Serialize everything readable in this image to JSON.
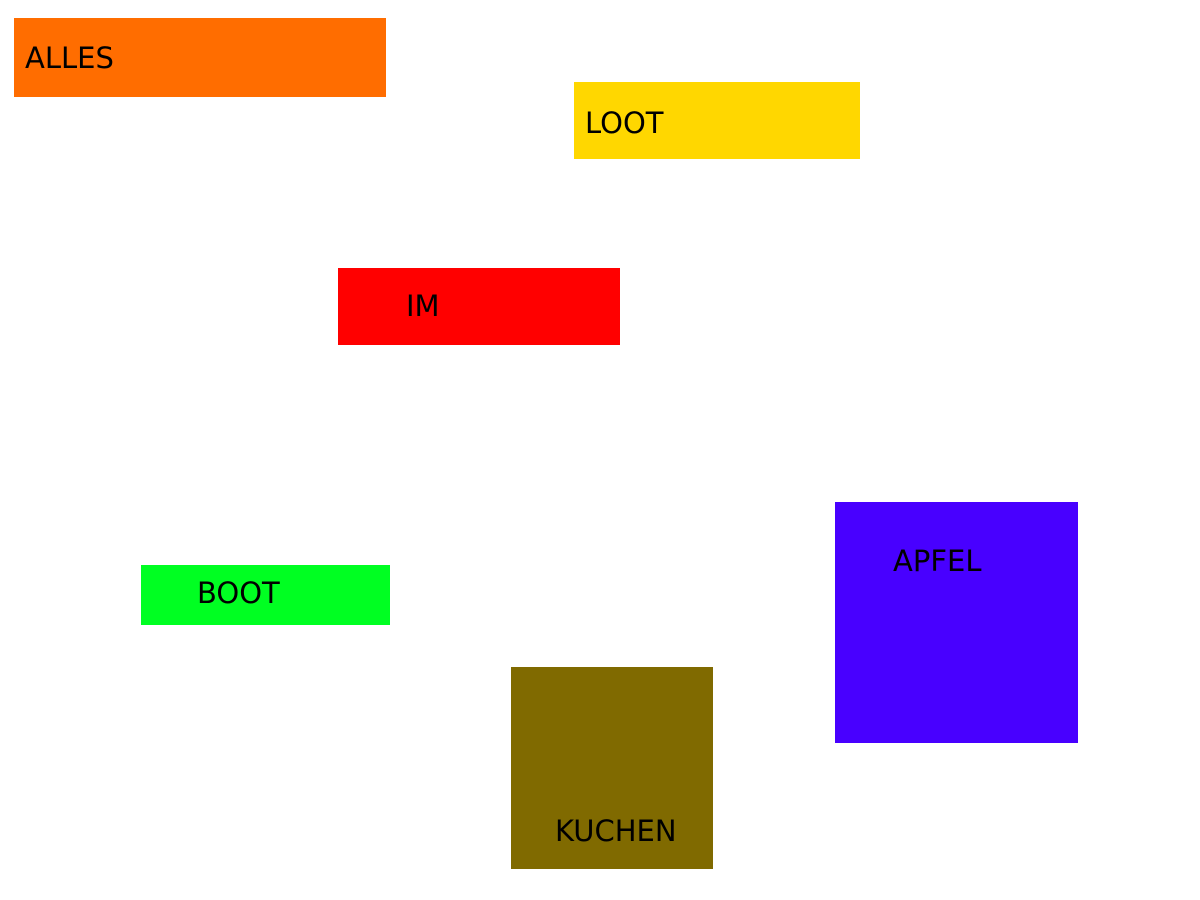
{
  "blocks": {
    "alles": {
      "label": "ALLES",
      "color": "#ff6d00"
    },
    "loot": {
      "label": "LOOT",
      "color": "#ffd700"
    },
    "im": {
      "label": "IM",
      "color": "#ff0000"
    },
    "boot": {
      "label": "BOOT",
      "color": "#00ff22"
    },
    "apfel": {
      "label": "APFEL",
      "color": "#4800ff"
    },
    "kuchen": {
      "label": "KUCHEN",
      "color": "#806a00"
    }
  }
}
